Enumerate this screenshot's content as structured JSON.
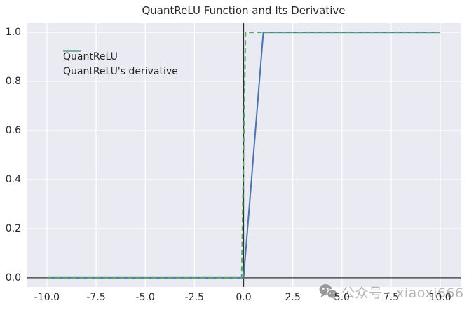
{
  "colors": {
    "figure_bg": "#ffffff",
    "axes_bg": "#eaeaf2",
    "grid": "#ffffff",
    "axis_line": "#2e2e2e",
    "text": "#262626",
    "watermark_text": "#b5b5b5",
    "watermark_icon": "#9a9a9a",
    "series_blue": "#4c72b0",
    "series_green": "#55a868"
  },
  "watermark": {
    "icon": "wechat-icon",
    "text": "公众号 · xiaoxi666"
  },
  "chart_data": {
    "type": "line",
    "title": "QuantReLU Function and Its Derivative",
    "xlabel": "",
    "ylabel": "",
    "xlim": [
      -11.03,
      11.03
    ],
    "ylim": [
      -0.0375,
      1.0375
    ],
    "grid": true,
    "grid_color": "#ffffff",
    "background": "#eaeaf2",
    "legend_position": "upper-left",
    "xticks": [
      {
        "value": -10.0,
        "label": "-10.0"
      },
      {
        "value": -7.5,
        "label": "-7.5"
      },
      {
        "value": -5.0,
        "label": "-5.0"
      },
      {
        "value": -2.5,
        "label": "-2.5"
      },
      {
        "value": 0.0,
        "label": "0.0"
      },
      {
        "value": 2.5,
        "label": "2.5"
      },
      {
        "value": 5.0,
        "label": "5.0"
      },
      {
        "value": 7.5,
        "label": "7.5"
      },
      {
        "value": 10.0,
        "label": "10.0"
      }
    ],
    "yticks": [
      {
        "value": 0.0,
        "label": "0.0"
      },
      {
        "value": 0.2,
        "label": "0.2"
      },
      {
        "value": 0.4,
        "label": "0.4"
      },
      {
        "value": 0.6,
        "label": "0.6"
      },
      {
        "value": 0.8,
        "label": "0.8"
      },
      {
        "value": 1.0,
        "label": "1.0"
      }
    ],
    "reference_lines": [
      {
        "axis": "x",
        "value": 0
      },
      {
        "axis": "y",
        "value": 0
      }
    ],
    "series": [
      {
        "name": "QuantReLU",
        "color": "#4c72b0",
        "style": "solid",
        "points": [
          [
            -10,
            0
          ],
          [
            0,
            0
          ],
          [
            1,
            1
          ],
          [
            10,
            1
          ]
        ]
      },
      {
        "name": "QuantReLU's derivative",
        "color": "#55a868",
        "style": "dashed",
        "points": [
          [
            -10,
            0
          ],
          [
            -0.1,
            0
          ],
          [
            0.1,
            1
          ],
          [
            10,
            1
          ]
        ]
      }
    ]
  }
}
